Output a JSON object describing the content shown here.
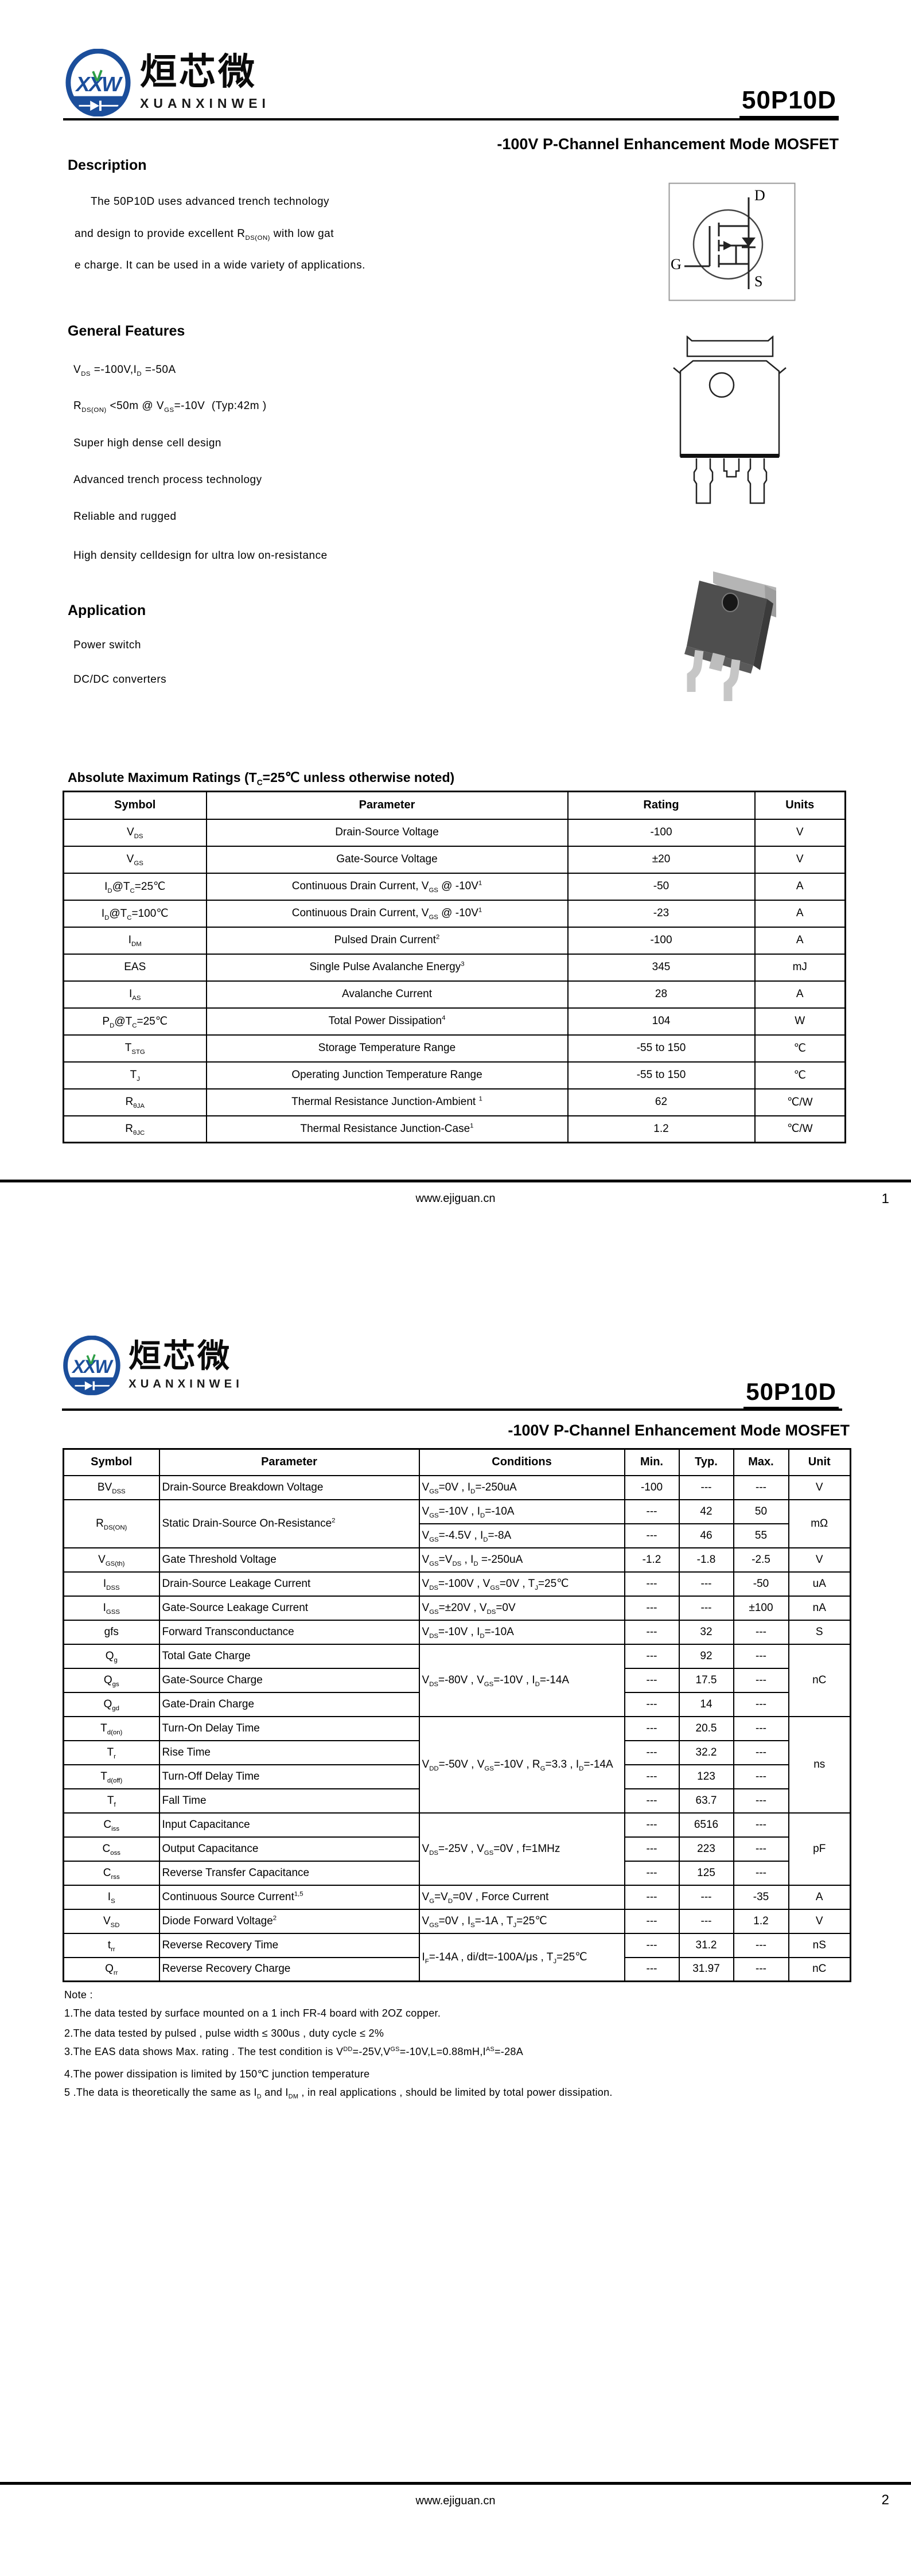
{
  "brand": {
    "monogram": "XXW",
    "name_cn": "烜芯微",
    "name_en": "XUANXINWEI"
  },
  "part_number": "50P10D",
  "subtitle": "-100V P-Channel Enhancement Mode MOSFET",
  "colors": {
    "logo_blue": "#1b4e9b",
    "logo_green": "#2e9e46",
    "text": "#000000"
  },
  "footer": {
    "url": "www.ejiguan.cn",
    "page1": "1",
    "page2": "2"
  },
  "page1": {
    "description": {
      "heading": "Description",
      "lines": [
        "The 50P10D uses advanced trench technology",
        "and design to provide excellent R|DS(ON)| with low gat",
        "e charge. It can be used in a wide variety of applications."
      ]
    },
    "features": {
      "heading": "General Features",
      "items": [
        "V|DS| =-100V,I|D| =-50A",
        "R|DS(ON)| <50m @ V|GS|=-10V  (Typ:42m )",
        "Super high dense cell design",
        "Advanced trench process technology",
        "Reliable and rugged",
        "High density celldesign for ultra low on-resistance"
      ]
    },
    "application": {
      "heading": "Application",
      "items": [
        "Power switch",
        "DC/DC converters"
      ]
    },
    "symbol_pins": {
      "d": "D",
      "g": "G",
      "s": "S"
    },
    "abs_max": {
      "title": "Absolute Maximum Ratings (T|C|=25℃ unless otherwise noted)",
      "headers": [
        "Symbol",
        "Parameter",
        "Rating",
        "Units"
      ],
      "rows": [
        {
          "symbol": "V|DS|",
          "parameter": "Drain-Source Voltage",
          "rating": "-100",
          "units": "V"
        },
        {
          "symbol": "V|GS|",
          "parameter": "Gate-Source Voltage",
          "rating": "±20",
          "units": "V"
        },
        {
          "symbol": "I|D|@T|C|=25℃",
          "parameter": "Continuous Drain Current, V|GS| @ -10V^1^",
          "rating": "-50",
          "units": "A"
        },
        {
          "symbol": "I|D|@T|C|=100℃",
          "parameter": "Continuous Drain Current, V|GS| @ -10V^1^",
          "rating": "-23",
          "units": "A"
        },
        {
          "symbol": "I|DM|",
          "parameter": "Pulsed Drain Current^2^",
          "rating": "-100",
          "units": "A"
        },
        {
          "symbol": "EAS",
          "parameter": "Single Pulse Avalanche Energy^3^",
          "rating": "345",
          "units": "mJ"
        },
        {
          "symbol": "I|AS|",
          "parameter": "Avalanche Current",
          "rating": "28",
          "units": "A"
        },
        {
          "symbol": "P|D|@T|C|=25℃",
          "parameter": "Total Power Dissipation^4^",
          "rating": "104",
          "units": "W"
        },
        {
          "symbol": "T|STG|",
          "parameter": "Storage Temperature Range",
          "rating": "-55 to 150",
          "units": "℃"
        },
        {
          "symbol": "T|J|",
          "parameter": "Operating Junction Temperature Range",
          "rating": "-55 to 150",
          "units": "℃"
        },
        {
          "symbol": "R|θJA|",
          "parameter": "Thermal Resistance Junction-Ambient ^1^",
          "rating": "62",
          "units": "℃/W"
        },
        {
          "symbol": "R|θJC|",
          "parameter": "Thermal Resistance Junction-Case^1^",
          "rating": "1.2",
          "units": "℃/W"
        }
      ]
    }
  },
  "page2": {
    "electrical": {
      "headers": [
        "Symbol",
        "Parameter",
        "Conditions",
        "Min.",
        "Typ.",
        "Max.",
        "Unit"
      ],
      "rows": [
        {
          "symbol": "BV|DSS|",
          "parameter": "Drain-Source Breakdown Voltage",
          "conditions": "V|GS|=0V , I|D|=-250uA",
          "min": "-100",
          "typ": "---",
          "max": "---",
          "unit": "V"
        },
        {
          "symbol": "R|DS(ON)|",
          "parameter": "Static Drain-Source On-Resistance^2^",
          "conditions": "V|GS|=-10V , I|D|=-10A",
          "min": "---",
          "typ": "42",
          "max": "50",
          "unit": "mΩ"
        },
        {
          "conditions": "V|GS|=-4.5V , I|D|=-8A",
          "min": "---",
          "typ": "46",
          "max": "55"
        },
        {
          "symbol": "V|GS(th)|",
          "parameter": "Gate Threshold Voltage",
          "conditions": "V|GS|=V|DS| , I|D| =-250uA",
          "min": "-1.2",
          "typ": "-1.8",
          "max": "-2.5",
          "unit": "V"
        },
        {
          "symbol": "I|DSS|",
          "parameter": "Drain-Source Leakage Current",
          "conditions": "V|DS|=-100V , V|GS|=0V , T|J|=25℃",
          "min": "---",
          "typ": "---",
          "max": "-50",
          "unit": "uA"
        },
        {
          "symbol": "I|GSS|",
          "parameter": "Gate-Source Leakage Current",
          "conditions": "V|GS|=±20V , V|DS|=0V",
          "min": "---",
          "typ": "---",
          "max": "±100",
          "unit": "nA"
        },
        {
          "symbol": "gfs",
          "parameter": "Forward Transconductance",
          "conditions": "V|DS|=-10V , I|D|=-10A",
          "min": "---",
          "typ": "32",
          "max": "---",
          "unit": "S"
        },
        {
          "symbol": "Q|g|",
          "parameter": "Total Gate Charge",
          "conditions": "V|DS|=-80V , V|GS|=-10V , I|D|=-14A",
          "min": "---",
          "typ": "92",
          "max": "---",
          "unit": "nC"
        },
        {
          "symbol": "Q|gs|",
          "parameter": "Gate-Source Charge",
          "min": "---",
          "typ": "17.5",
          "max": "---"
        },
        {
          "symbol": "Q|gd|",
          "parameter": "Gate-Drain Charge",
          "min": "---",
          "typ": "14",
          "max": "---"
        },
        {
          "symbol": "T|d(on)|",
          "parameter": "Turn-On Delay Time",
          "conditions": "V|DD|=-50V   ,   V|GS|=-10V   ,   R|G|=3.3  ,  I|D|=-14A",
          "min": "---",
          "typ": "20.5",
          "max": "---",
          "unit": "ns"
        },
        {
          "symbol": "T|r|",
          "parameter": "Rise Time",
          "min": "---",
          "typ": "32.2",
          "max": "---"
        },
        {
          "symbol": "T|d(off)|",
          "parameter": "Turn-Off Delay Time",
          "min": "---",
          "typ": "123",
          "max": "---"
        },
        {
          "symbol": "T|f|",
          "parameter": "Fall Time",
          "min": "---",
          "typ": "63.7",
          "max": "---"
        },
        {
          "symbol": "C|iss|",
          "parameter": "Input Capacitance",
          "conditions": "V|DS|=-25V , V|GS|=0V , f=1MHz",
          "min": "---",
          "typ": "6516",
          "max": "---",
          "unit": "pF"
        },
        {
          "symbol": "C|oss|",
          "parameter": "Output Capacitance",
          "min": "---",
          "typ": "223",
          "max": "---"
        },
        {
          "symbol": "C|rss|",
          "parameter": "Reverse Transfer Capacitance",
          "min": "---",
          "typ": "125",
          "max": "---"
        },
        {
          "symbol": "I|S|",
          "parameter": "Continuous Source Current^1,5^",
          "conditions": "V|G|=V|D|=0V , Force Current",
          "min": "---",
          "typ": "---",
          "max": "-35",
          "unit": "A"
        },
        {
          "symbol": "V|SD|",
          "parameter": "Diode Forward Voltage^2^",
          "conditions": "V|GS|=0V , I|S|=-1A , T|J|=25℃",
          "min": "---",
          "typ": "---",
          "max": "1.2",
          "unit": "V"
        },
        {
          "symbol": "t|rr|",
          "parameter": "Reverse Recovery Time",
          "conditions": "I|F|=-14A , di/dt=-100A/μs , T|J|=25℃",
          "min": "---",
          "typ": "31.2",
          "max": "---",
          "unit": "nS"
        },
        {
          "symbol": "Q|rr|",
          "parameter": "Reverse Recovery Charge",
          "min": "---",
          "typ": "31.97",
          "max": "---",
          "unit": "nC"
        }
      ]
    },
    "notes": {
      "heading": "Note :",
      "items": [
        "1.The data tested by surface mounted on a 1 inch FR-4 board with 2OZ copper.",
        "2.The data tested by pulsed , pulse width ≤ 300us , duty cycle ≤ 2%",
        "3.The EAS data shows Max. rating . The test condition is V^DD^=-25V,V^GS^=-10V,L=0.88mH,I^AS^=-28A",
        "4.The power dissipation is limited by 150℃ junction temperature",
        "5 .The data is theoretically the same as I|D| and I|DM| , in real applications , should be limited by total power dissipation."
      ]
    }
  }
}
